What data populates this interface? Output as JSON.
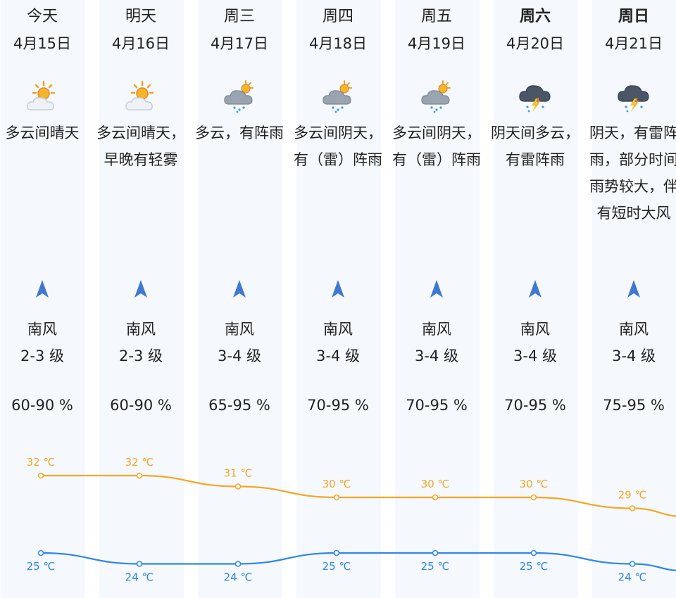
{
  "days": [
    {
      "weekday": "今天",
      "date": "4月15日",
      "icon": "partly-sunny-icon",
      "desc": "多云间晴天",
      "wind_dir": "南风",
      "wind_level": "2-3 级",
      "humidity": "60-90 %",
      "bold": false
    },
    {
      "weekday": "明天",
      "date": "4月16日",
      "icon": "partly-sunny-icon",
      "desc": "多云间晴天，早晚有轻雾",
      "wind_dir": "南风",
      "wind_level": "2-3 级",
      "humidity": "60-90 %",
      "bold": false
    },
    {
      "weekday": "周三",
      "date": "4月17日",
      "icon": "cloudy-rain-icon",
      "desc": "多云，有阵雨",
      "wind_dir": "南风",
      "wind_level": "3-4 级",
      "humidity": "65-95 %",
      "bold": false
    },
    {
      "weekday": "周四",
      "date": "4月18日",
      "icon": "cloudy-rain-icon",
      "desc": "多云间阴天，有（雷）阵雨",
      "wind_dir": "南风",
      "wind_level": "3-4 级",
      "humidity": "70-95 %",
      "bold": false
    },
    {
      "weekday": "周五",
      "date": "4月19日",
      "icon": "cloudy-rain-icon",
      "desc": "多云间阴天，有（雷）阵雨",
      "wind_dir": "南风",
      "wind_level": "3-4 级",
      "humidity": "70-95 %",
      "bold": false
    },
    {
      "weekday": "周六",
      "date": "4月20日",
      "icon": "thunderstorm-icon",
      "desc": "阴天间多云，有雷阵雨",
      "wind_dir": "南风",
      "wind_level": "3-4 级",
      "humidity": "70-95 %",
      "bold": true
    },
    {
      "weekday": "周日",
      "date": "4月21日",
      "icon": "thunderstorm-icon",
      "desc": "阴天，有雷阵雨，部分时间雨势较大，伴有短时大风",
      "wind_dir": "南风",
      "wind_level": "3-4 级",
      "humidity": "75-95 %",
      "bold": true
    }
  ],
  "chart_data": {
    "type": "line",
    "x": [
      "4月15日",
      "4月16日",
      "4月17日",
      "4月18日",
      "4月19日",
      "4月20日",
      "4月21日"
    ],
    "series": [
      {
        "values": [
          32,
          32,
          31,
          30,
          30,
          30,
          29
        ],
        "labels": [
          "32 ℃",
          "32 ℃",
          "31 ℃",
          "30 ℃",
          "30 ℃",
          "30 ℃",
          "29 ℃"
        ],
        "color": "#f5a623"
      },
      {
        "values": [
          25,
          24,
          24,
          25,
          25,
          25,
          24
        ],
        "labels": [
          "25 ℃",
          "24 ℃",
          "24 ℃",
          "25 ℃",
          "25 ℃",
          "25 ℃",
          "24 ℃"
        ],
        "color": "#2f86e8"
      }
    ]
  },
  "colors": {
    "column_bg": "#f5f8fd",
    "high": "#f5a623",
    "low": "#2f86e8",
    "wind_icon": "#3f78d0"
  }
}
